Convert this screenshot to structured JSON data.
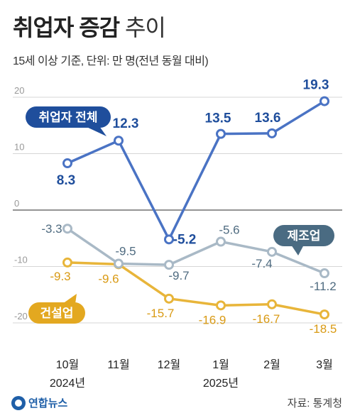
{
  "header": {
    "title_bold": "취업자 증감",
    "title_light": "추이",
    "subtitle": "15세 이상 기준, 단위: 만 명(전년 동월 대비)"
  },
  "footer": {
    "logo": "연합뉴스",
    "source": "자료: 통계청"
  },
  "chart_data": {
    "type": "line",
    "categories": [
      "10월",
      "11월",
      "12월",
      "1월",
      "2월",
      "3월"
    ],
    "year_labels": [
      {
        "text": "2024년",
        "under": "10월"
      },
      {
        "text": "2025년",
        "under": "1월"
      }
    ],
    "yticks": [
      20,
      10,
      0,
      -10,
      -20
    ],
    "ylim": [
      -23,
      22
    ],
    "series": [
      {
        "name": "취업자 전체",
        "color": "#4a73c4",
        "label_color": "#1f4e9c",
        "values": [
          8.3,
          12.3,
          -5.2,
          13.5,
          13.6,
          19.3
        ],
        "value_labels": [
          "8.3",
          "12.3",
          "-5.2",
          "13.5",
          "13.6",
          "19.3"
        ]
      },
      {
        "name": "제조업",
        "color": "#a9b9c6",
        "label_color": "#4f6b80",
        "values": [
          -3.3,
          -9.5,
          -9.7,
          -5.6,
          -7.4,
          -11.2
        ],
        "value_labels": [
          "-3.3",
          "-9.5",
          "-9.7",
          "-5.6",
          "-7.4",
          "-11.2"
        ]
      },
      {
        "name": "건설업",
        "color": "#e8b53a",
        "label_color": "#d99a14",
        "values": [
          -9.3,
          -9.6,
          -15.7,
          -16.9,
          -16.7,
          -18.5
        ],
        "value_labels": [
          "-9.3",
          "-9.6",
          "-15.7",
          "-16.9",
          "-16.7",
          "-18.5"
        ]
      }
    ]
  }
}
